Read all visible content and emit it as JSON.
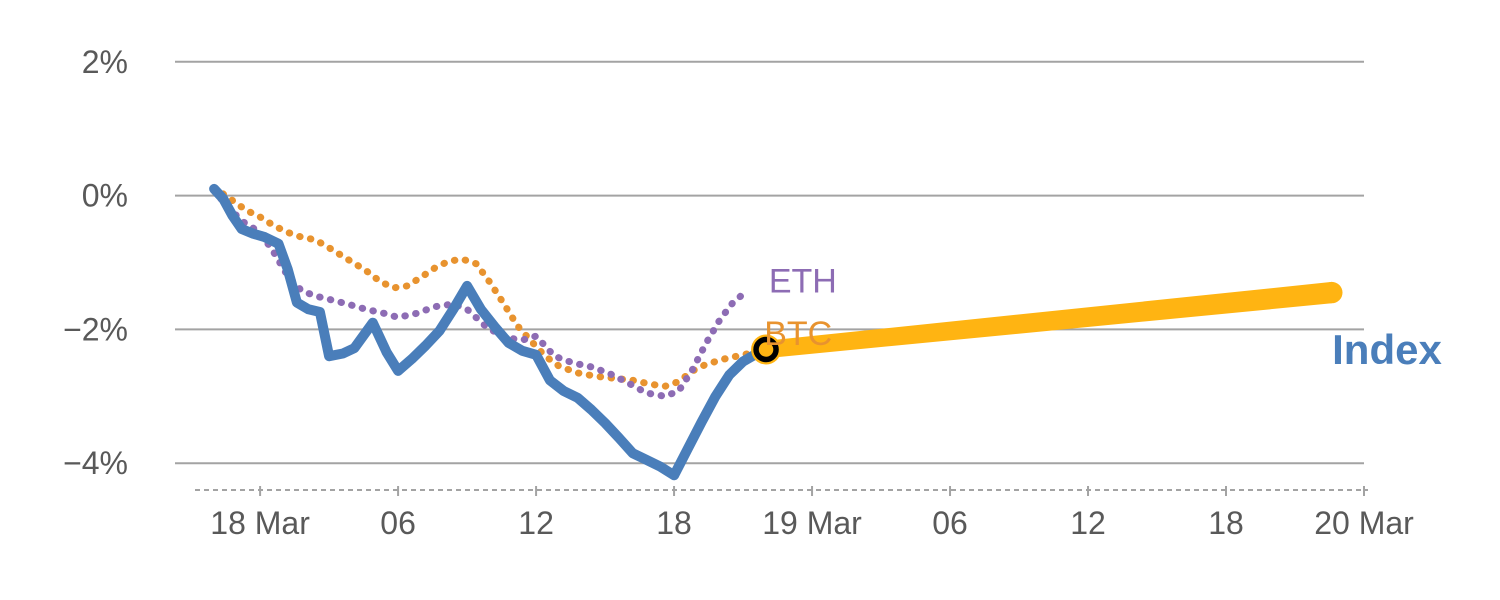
{
  "chart_data": {
    "type": "line",
    "title": "",
    "description": "Percentage performance of Index vs ETH and BTC over 18-19 Mar with forward projection band to 20 Mar",
    "x_axis": {
      "unit": "hours-from-18-Mar-00:00",
      "lim": [
        -3.7,
        48
      ],
      "ticks": [
        {
          "value": 0,
          "label": "18 Mar"
        },
        {
          "value": 6,
          "label": "06"
        },
        {
          "value": 12,
          "label": "12"
        },
        {
          "value": 18,
          "label": "18"
        },
        {
          "value": 24,
          "label": "19 Mar"
        },
        {
          "value": 30,
          "label": "06"
        },
        {
          "value": 36,
          "label": "12"
        },
        {
          "value": 42,
          "label": "18"
        },
        {
          "value": 48,
          "label": "20 Mar"
        }
      ]
    },
    "y_axis": {
      "unit": "percent",
      "lim": [
        -4.4,
        2.4
      ],
      "ticks": [
        {
          "value": 2,
          "label": "2%"
        },
        {
          "value": 0,
          "label": "0%"
        },
        {
          "value": -2,
          "label": "−2%"
        },
        {
          "value": -4,
          "label": "−4%"
        }
      ]
    },
    "style": {
      "grid_color": "#a3a3a3",
      "label_color": "#595959",
      "background": "#ffffff",
      "tick_font_size": 32
    },
    "series": [
      {
        "name": "BTC",
        "color": "#e8932f",
        "line_style": "dotted",
        "stroke_width": 7,
        "points": [
          [
            -2.0,
            0.12
          ],
          [
            -1.3,
            -0.05
          ],
          [
            -0.6,
            -0.22
          ],
          [
            0.0,
            -0.32
          ],
          [
            0.6,
            -0.45
          ],
          [
            1.2,
            -0.55
          ],
          [
            1.8,
            -0.62
          ],
          [
            2.4,
            -0.66
          ],
          [
            3.0,
            -0.78
          ],
          [
            3.8,
            -0.95
          ],
          [
            4.6,
            -1.12
          ],
          [
            5.2,
            -1.28
          ],
          [
            5.8,
            -1.38
          ],
          [
            6.4,
            -1.35
          ],
          [
            7.0,
            -1.22
          ],
          [
            7.6,
            -1.08
          ],
          [
            8.2,
            -0.98
          ],
          [
            8.8,
            -0.95
          ],
          [
            9.4,
            -1.02
          ],
          [
            10.0,
            -1.3
          ],
          [
            10.6,
            -1.62
          ],
          [
            11.2,
            -1.95
          ],
          [
            11.8,
            -2.18
          ],
          [
            12.4,
            -2.4
          ],
          [
            13.0,
            -2.55
          ],
          [
            13.8,
            -2.65
          ],
          [
            14.6,
            -2.7
          ],
          [
            15.4,
            -2.73
          ],
          [
            16.2,
            -2.76
          ],
          [
            17.0,
            -2.82
          ],
          [
            17.6,
            -2.85
          ],
          [
            18.2,
            -2.78
          ],
          [
            18.8,
            -2.62
          ],
          [
            19.4,
            -2.52
          ],
          [
            20.2,
            -2.44
          ],
          [
            21.0,
            -2.38
          ],
          [
            22.0,
            -2.3
          ]
        ]
      },
      {
        "name": "ETH",
        "color": "#8d6cb4",
        "line_style": "dotted",
        "stroke_width": 7,
        "points": [
          [
            -2.0,
            0.08
          ],
          [
            -1.4,
            -0.18
          ],
          [
            -0.7,
            -0.4
          ],
          [
            0.0,
            -0.55
          ],
          [
            0.6,
            -0.85
          ],
          [
            1.2,
            -1.2
          ],
          [
            1.8,
            -1.42
          ],
          [
            2.4,
            -1.5
          ],
          [
            3.0,
            -1.55
          ],
          [
            3.8,
            -1.62
          ],
          [
            4.6,
            -1.7
          ],
          [
            5.4,
            -1.76
          ],
          [
            6.0,
            -1.82
          ],
          [
            6.8,
            -1.76
          ],
          [
            7.6,
            -1.66
          ],
          [
            8.4,
            -1.62
          ],
          [
            9.0,
            -1.7
          ],
          [
            9.8,
            -1.95
          ],
          [
            10.6,
            -2.12
          ],
          [
            11.4,
            -2.16
          ],
          [
            12.0,
            -2.1
          ],
          [
            12.8,
            -2.4
          ],
          [
            13.6,
            -2.5
          ],
          [
            14.4,
            -2.56
          ],
          [
            15.2,
            -2.66
          ],
          [
            16.0,
            -2.8
          ],
          [
            16.8,
            -2.95
          ],
          [
            17.6,
            -3.0
          ],
          [
            18.2,
            -2.92
          ],
          [
            18.8,
            -2.6
          ],
          [
            19.4,
            -2.2
          ],
          [
            20.0,
            -1.85
          ],
          [
            20.6,
            -1.58
          ],
          [
            21.1,
            -1.45
          ]
        ]
      },
      {
        "name": "Index",
        "color": "#4a7eba",
        "line_style": "solid",
        "stroke_width": 10,
        "points": [
          [
            -2.0,
            0.1
          ],
          [
            -1.6,
            -0.05
          ],
          [
            -1.2,
            -0.3
          ],
          [
            -0.8,
            -0.5
          ],
          [
            -0.3,
            -0.57
          ],
          [
            0.2,
            -0.62
          ],
          [
            0.8,
            -0.72
          ],
          [
            1.2,
            -1.1
          ],
          [
            1.6,
            -1.6
          ],
          [
            2.1,
            -1.7
          ],
          [
            2.6,
            -1.74
          ],
          [
            3.0,
            -2.4
          ],
          [
            3.6,
            -2.36
          ],
          [
            4.1,
            -2.28
          ],
          [
            4.9,
            -1.9
          ],
          [
            5.5,
            -2.34
          ],
          [
            6.0,
            -2.62
          ],
          [
            6.6,
            -2.44
          ],
          [
            7.2,
            -2.24
          ],
          [
            7.8,
            -2.02
          ],
          [
            8.4,
            -1.7
          ],
          [
            9.0,
            -1.35
          ],
          [
            9.6,
            -1.7
          ],
          [
            10.2,
            -1.96
          ],
          [
            10.8,
            -2.2
          ],
          [
            11.4,
            -2.32
          ],
          [
            12.0,
            -2.38
          ],
          [
            12.6,
            -2.76
          ],
          [
            13.2,
            -2.92
          ],
          [
            13.8,
            -3.02
          ],
          [
            14.4,
            -3.2
          ],
          [
            15.0,
            -3.4
          ],
          [
            15.6,
            -3.62
          ],
          [
            16.2,
            -3.85
          ],
          [
            16.8,
            -3.95
          ],
          [
            17.4,
            -4.05
          ],
          [
            18.0,
            -4.18
          ],
          [
            18.6,
            -3.78
          ],
          [
            19.2,
            -3.38
          ],
          [
            19.8,
            -3.0
          ],
          [
            20.4,
            -2.68
          ],
          [
            21.0,
            -2.48
          ],
          [
            21.6,
            -2.36
          ],
          [
            22.0,
            -2.3
          ]
        ]
      }
    ],
    "forecast_band": {
      "name": "Index projection",
      "color": "#ffb412",
      "x0": 22.0,
      "y0": -2.3,
      "half_width0": 0.13,
      "x1": 46.6,
      "y1": -1.45,
      "half_width1": 0.16
    },
    "marker": {
      "x": 22.0,
      "y": -2.3,
      "ring_color": "#000000",
      "halo_color": "#ffb412",
      "ring_radius": 10,
      "halo_radius": 15
    },
    "series_labels": [
      {
        "text": "ETH",
        "x": 23.6,
        "y": -1.45,
        "color": "#8d6cb4",
        "font_size": 34,
        "bold": false
      },
      {
        "text": "BTC",
        "x": 23.4,
        "y": -2.23,
        "color": "#e8932f",
        "font_size": 34,
        "bold": false
      },
      {
        "text": "Index",
        "x": 49.0,
        "y": -2.52,
        "color": "#4a7eba",
        "font_size": 42,
        "bold": true
      }
    ]
  }
}
